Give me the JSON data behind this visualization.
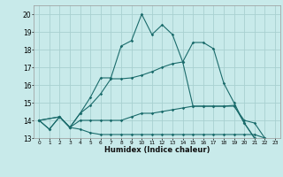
{
  "xlabel": "Humidex (Indice chaleur)",
  "bg_color": "#c8eaea",
  "grid_color": "#a8d0d0",
  "line_color": "#1a6b6b",
  "xlim": [
    -0.5,
    23.5
  ],
  "ylim": [
    13,
    20.5
  ],
  "xticks": [
    0,
    1,
    2,
    3,
    4,
    5,
    6,
    7,
    8,
    9,
    10,
    11,
    12,
    13,
    14,
    15,
    16,
    17,
    18,
    19,
    20,
    21,
    22,
    23
  ],
  "yticks": [
    13,
    14,
    15,
    16,
    17,
    18,
    19,
    20
  ],
  "line1_x": [
    0,
    1,
    2,
    3,
    4,
    5,
    6,
    7,
    8,
    9,
    10,
    11,
    12,
    13,
    14,
    15,
    16,
    17,
    18,
    19,
    20,
    21,
    22,
    23
  ],
  "line1_y": [
    14.0,
    13.5,
    14.2,
    13.6,
    14.4,
    15.3,
    16.4,
    16.4,
    18.2,
    18.5,
    20.0,
    18.85,
    19.4,
    18.85,
    17.3,
    18.4,
    18.4,
    18.05,
    16.1,
    15.0,
    13.85,
    13.0,
    12.8,
    12.8
  ],
  "line2_x": [
    0,
    1,
    2,
    3,
    4,
    5,
    6,
    7,
    8,
    9,
    10,
    11,
    12,
    13,
    14,
    15,
    16,
    17,
    18,
    19,
    20,
    21
  ],
  "line2_y": [
    14.0,
    13.5,
    14.2,
    13.6,
    14.4,
    14.85,
    15.5,
    16.35,
    16.35,
    16.4,
    16.55,
    16.75,
    17.0,
    17.2,
    17.3,
    14.8,
    14.8,
    14.8,
    14.8,
    14.85,
    13.85,
    13.0
  ],
  "line3_x": [
    0,
    2,
    3,
    4,
    5,
    6,
    7,
    8,
    9,
    10,
    11,
    12,
    13,
    14,
    15,
    16,
    17,
    18,
    19,
    20,
    21,
    22,
    23
  ],
  "line3_y": [
    14.0,
    14.2,
    13.6,
    14.0,
    14.0,
    14.0,
    14.0,
    14.0,
    14.2,
    14.4,
    14.4,
    14.5,
    14.6,
    14.7,
    14.8,
    14.8,
    14.8,
    14.8,
    14.8,
    14.0,
    13.85,
    13.0,
    12.8
  ],
  "line4_x": [
    0,
    2,
    3,
    4,
    5,
    6,
    7,
    8,
    9,
    10,
    11,
    12,
    13,
    14,
    15,
    16,
    17,
    18,
    19,
    20,
    21,
    22,
    23
  ],
  "line4_y": [
    14.0,
    14.2,
    13.6,
    13.5,
    13.3,
    13.2,
    13.2,
    13.2,
    13.2,
    13.2,
    13.2,
    13.2,
    13.2,
    13.2,
    13.2,
    13.2,
    13.2,
    13.2,
    13.2,
    13.2,
    13.2,
    13.0,
    12.8
  ]
}
